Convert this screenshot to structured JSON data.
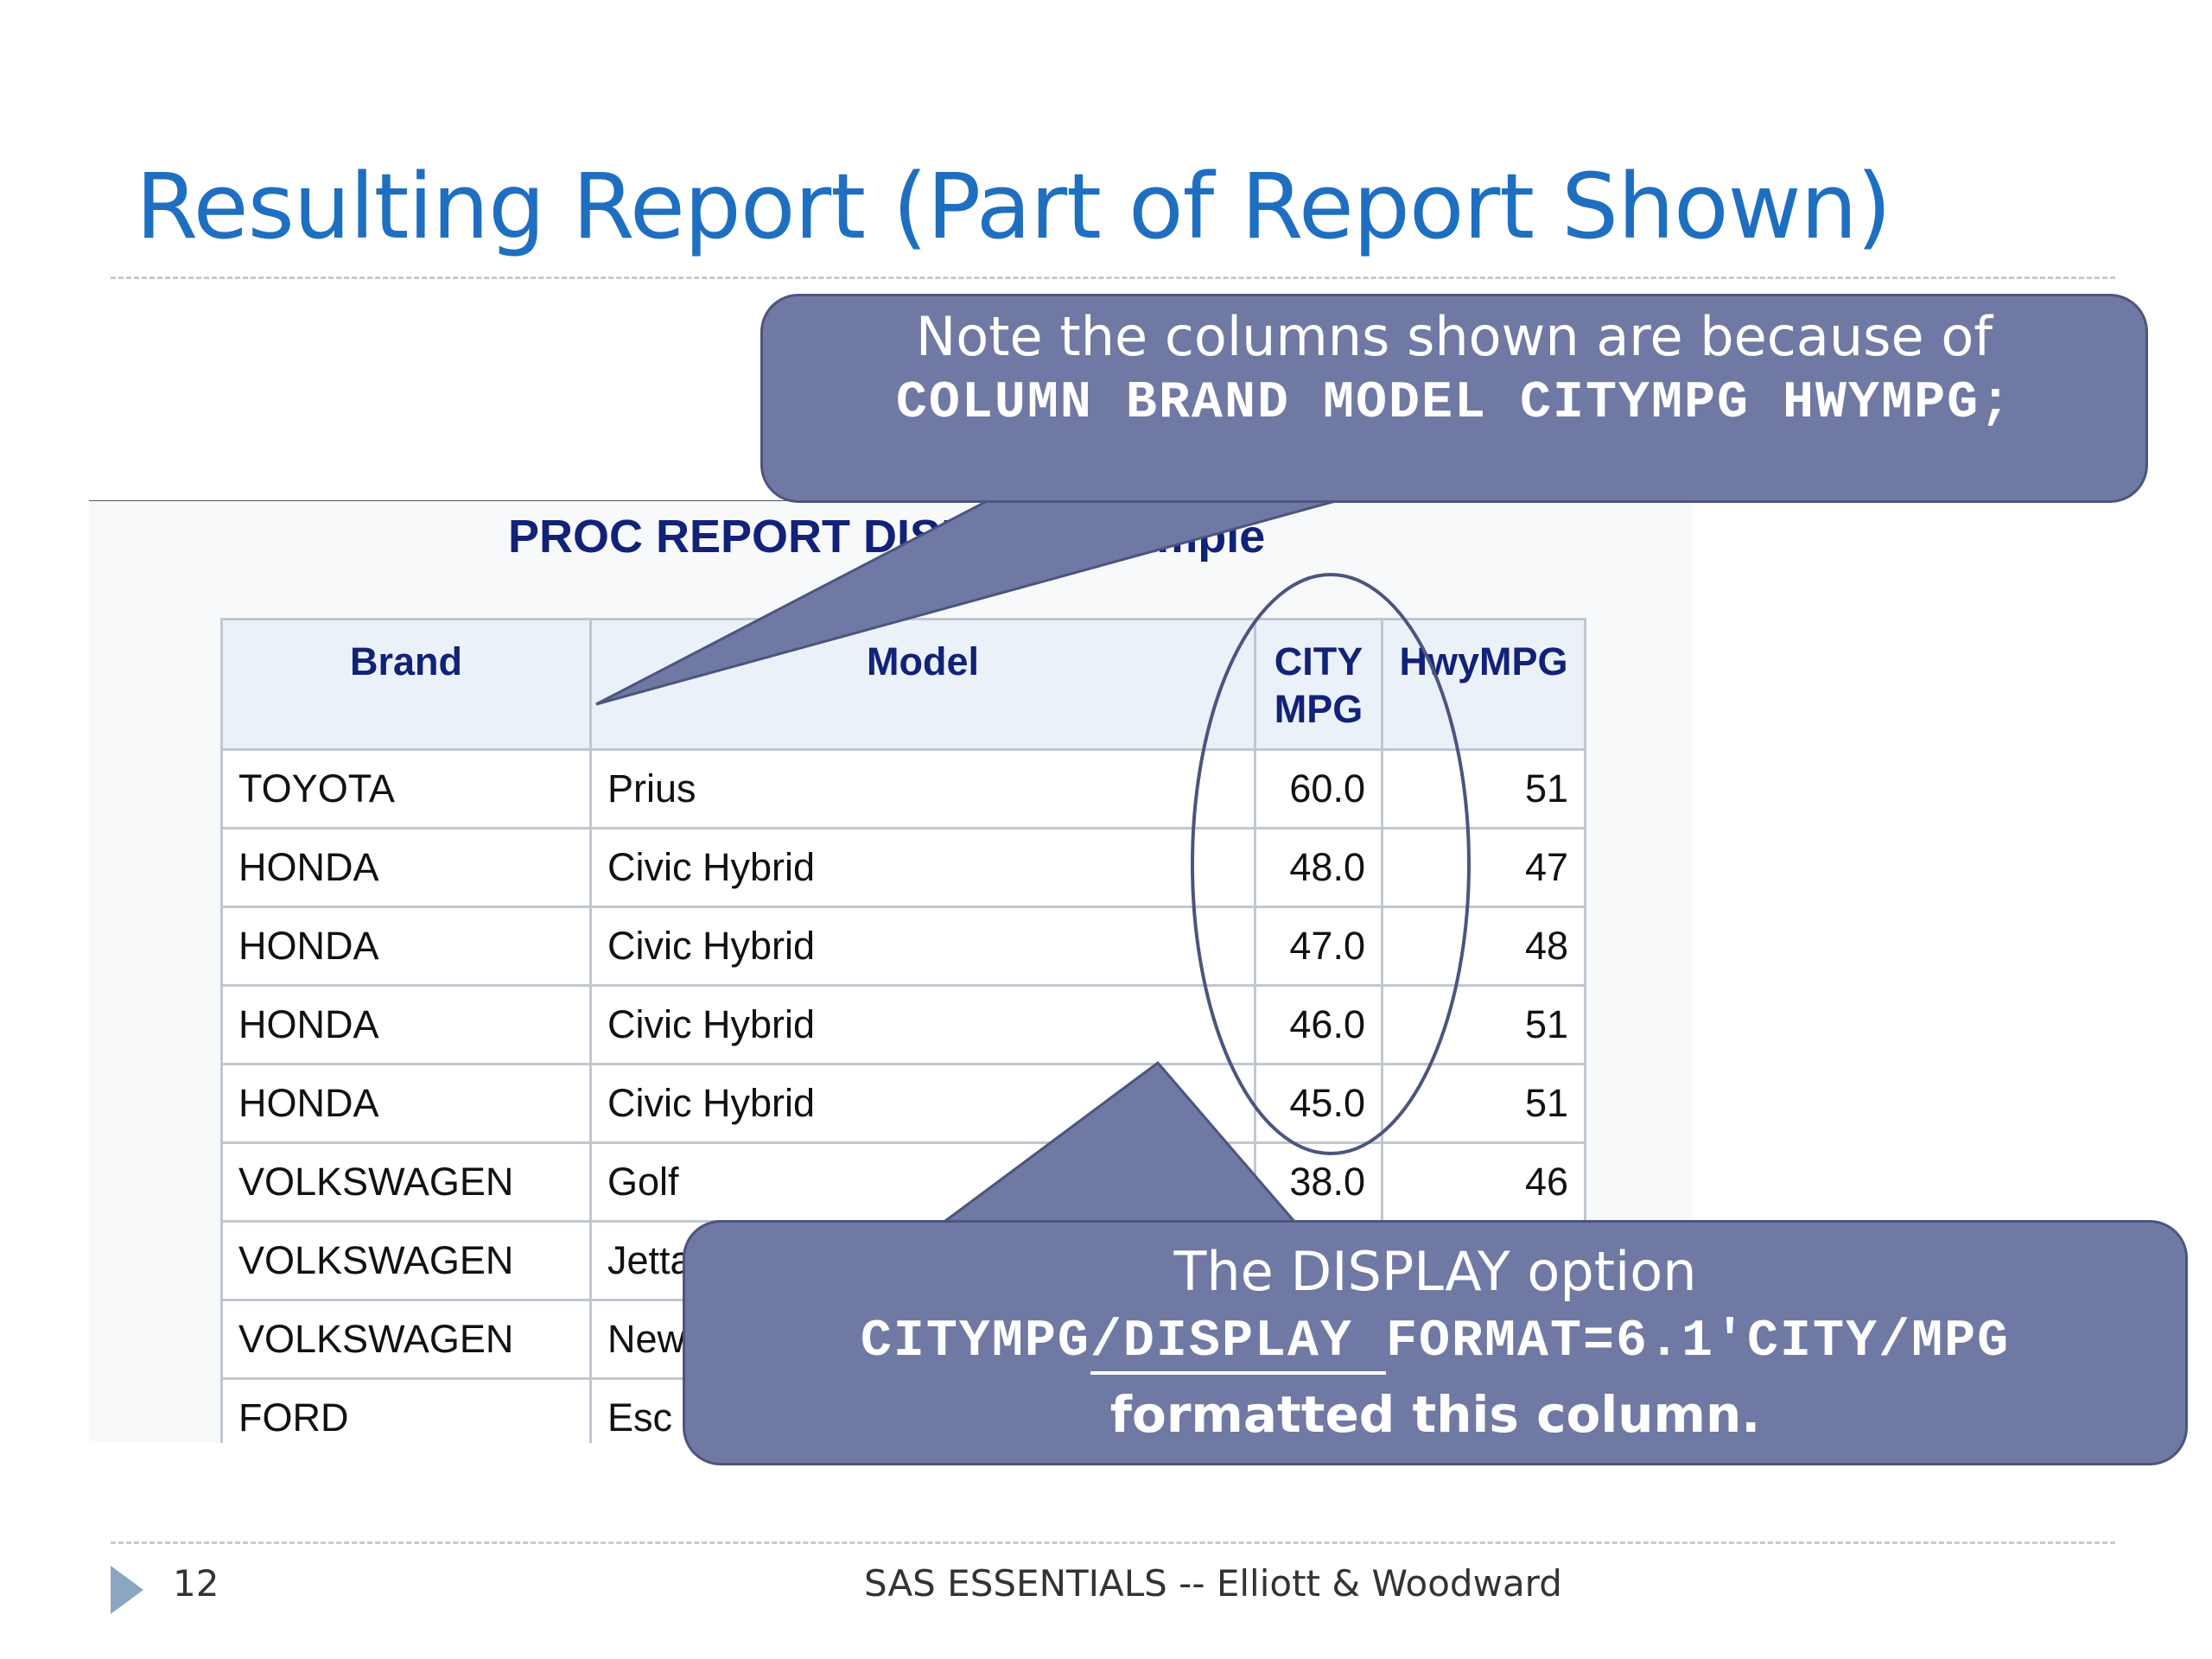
{
  "slide": {
    "title": "Resulting Report (Part of Report Shown)",
    "page_number": "12",
    "footer": "SAS ESSENTIALS -- Elliott & Woodward"
  },
  "report": {
    "title": "PROC REPORT DISPLAY Example",
    "headers": {
      "brand": "Brand",
      "model": "Model",
      "city_line1": "CITY",
      "city_line2": "MPG",
      "hwy": "HwyMPG"
    },
    "rows": [
      {
        "brand": "TOYOTA",
        "model": "Prius",
        "city": "60.0",
        "hwy": "51"
      },
      {
        "brand": "HONDA",
        "model": "Civic Hybrid",
        "city": "48.0",
        "hwy": "47"
      },
      {
        "brand": "HONDA",
        "model": "Civic Hybrid",
        "city": "47.0",
        "hwy": "48"
      },
      {
        "brand": "HONDA",
        "model": "Civic Hybrid",
        "city": "46.0",
        "hwy": "51"
      },
      {
        "brand": "HONDA",
        "model": "Civic Hybrid",
        "city": "45.0",
        "hwy": "51"
      },
      {
        "brand": "VOLKSWAGEN",
        "model": "Golf",
        "city": "38.0",
        "hwy": "46"
      },
      {
        "brand": "VOLKSWAGEN",
        "model": "Jetta",
        "city": "",
        "hwy": ""
      },
      {
        "brand": "VOLKSWAGEN",
        "model": "New",
        "city": "",
        "hwy": ""
      },
      {
        "brand": "FORD",
        "model": "Esc",
        "city": "",
        "hwy": ""
      }
    ]
  },
  "callouts": {
    "top_line1": "Note the columns shown are because of",
    "top_line2": "COLUMN BRAND MODEL CITYMPG HWYMPG;",
    "bottom_line1": "The DISPLAY option",
    "bottom_code_a": "CITYMPG",
    "bottom_code_b": "/DISPLAY ",
    "bottom_code_c": "FORMAT=6.1'CITY/MPG",
    "bottom_line3": "formatted this column."
  },
  "colors": {
    "title": "#1f6fc1",
    "callout_fill": "#6f79a3",
    "callout_border": "#4b557f",
    "header_fill": "#eaf1f9",
    "header_text": "#112277"
  }
}
